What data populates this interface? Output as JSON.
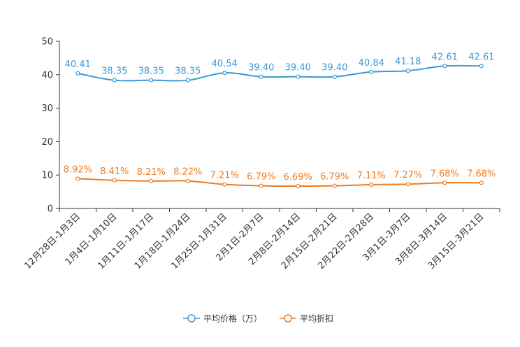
{
  "chart_data": {
    "type": "line",
    "title": "",
    "xlabel": "",
    "ylabel": "",
    "ylim": [
      0,
      50
    ],
    "yticks": [
      0,
      10,
      20,
      30,
      40,
      50
    ],
    "grid": false,
    "legend_position": "bottom-center",
    "categories": [
      "12月28日-1月3日",
      "1月4日-1月10日",
      "1月11日-1月17日",
      "1月18日-1月24日",
      "1月25日-1月31日",
      "2月1日-2月7日",
      "2月8日-2月14日",
      "2月15日-2月21日",
      "2月22日-2月28日",
      "3月1日-3月7日",
      "3月8日-3月14日",
      "3月15日-3月21日"
    ],
    "series": [
      {
        "name": "平均价格（万）",
        "color": "#3a9ad6",
        "values": [
          40.41,
          38.35,
          38.35,
          38.35,
          40.54,
          39.4,
          39.4,
          39.4,
          40.84,
          41.18,
          42.61,
          42.61
        ],
        "labels": [
          "40.41",
          "38.35",
          "38.35",
          "38.35",
          "40.54",
          "39.40",
          "39.40",
          "39.40",
          "40.84",
          "41.18",
          "42.61",
          "42.61"
        ]
      },
      {
        "name": "平均折扣",
        "color": "#f07b1e",
        "values": [
          8.92,
          8.41,
          8.21,
          8.22,
          7.21,
          6.79,
          6.69,
          6.79,
          7.11,
          7.27,
          7.68,
          7.68
        ],
        "labels": [
          "8.92%",
          "8.41%",
          "8.21%",
          "8.22%",
          "7.21%",
          "6.79%",
          "6.69%",
          "6.79%",
          "7.11%",
          "7.27%",
          "7.68%",
          "7.68%"
        ]
      }
    ]
  }
}
